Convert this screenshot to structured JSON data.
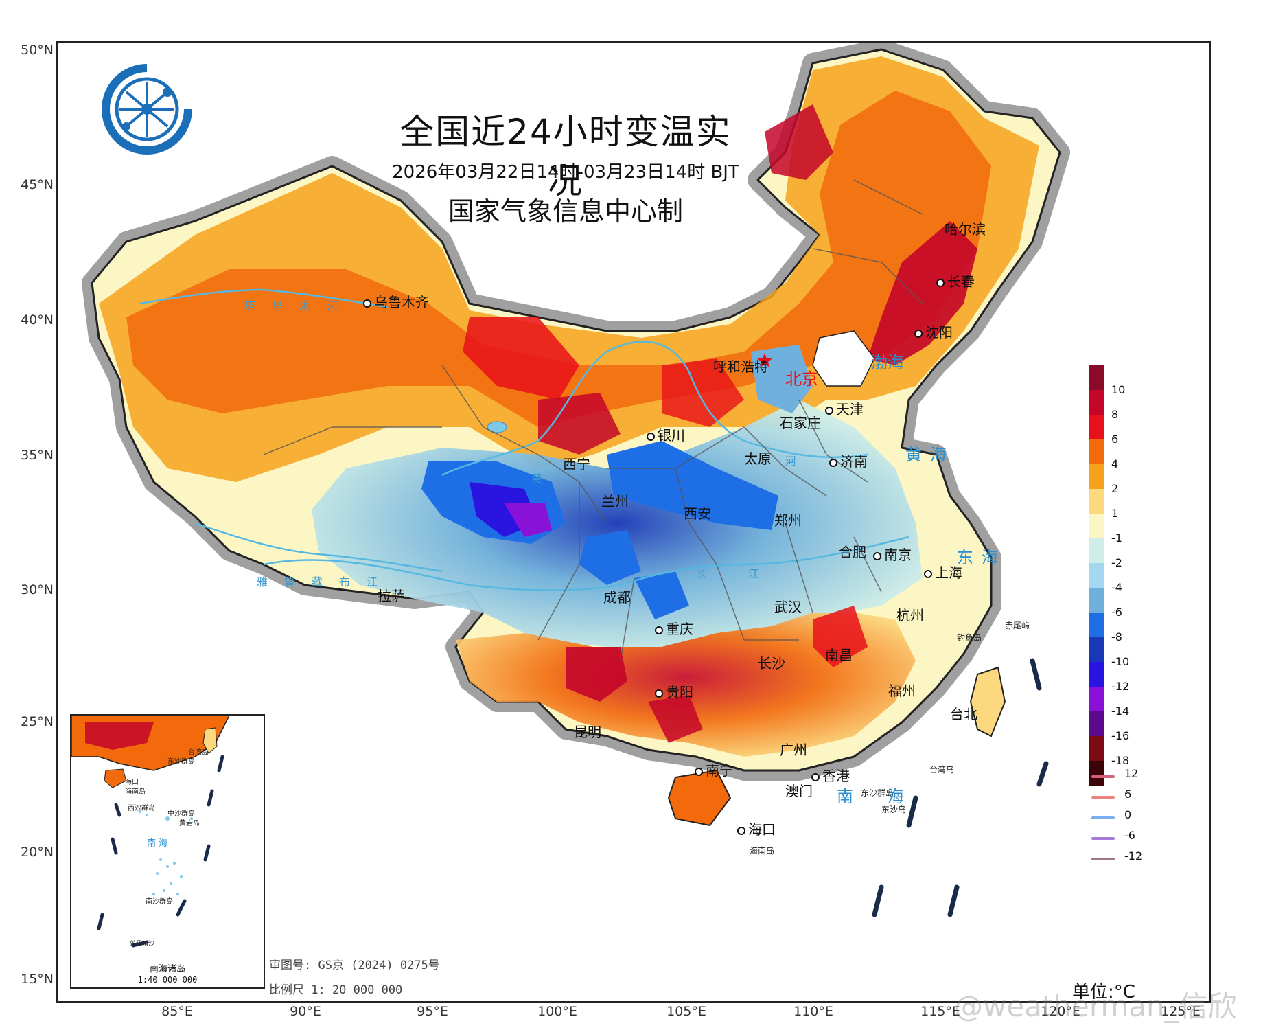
{
  "title": "全国近24小时变温实况",
  "subtitle": "2026年03月22日14时-03月23日14时 BJT",
  "maker": "国家气象信息中心制",
  "latitude_labels": [
    "50°N",
    "45°N",
    "40°N",
    "35°N",
    "30°N",
    "25°N",
    "20°N",
    "15°N"
  ],
  "longitude_labels": [
    "85°E",
    "90°E",
    "95°E",
    "100°E",
    "105°E",
    "110°E",
    "115°E",
    "120°E",
    "125°E"
  ],
  "cities": {
    "urumqi": "乌鲁木齐",
    "harbin": "哈尔滨",
    "changchun": "长春",
    "shenyang": "沈阳",
    "hohhot": "呼和浩特",
    "beijing": "北京",
    "tianjin": "天津",
    "shijiazhuang": "石家庄",
    "yinchuan": "银川",
    "taiyuan": "太原",
    "jinan": "济南",
    "xining": "西宁",
    "lanzhou": "兰州",
    "xian": "西安",
    "zhengzhou": "郑州",
    "hefei": "合肥",
    "nanjing": "南京",
    "shanghai": "上海",
    "lhasa": "拉萨",
    "chengdu": "成都",
    "wuhan": "武汉",
    "hangzhou": "杭州",
    "chongqing": "重庆",
    "nanchang": "南昌",
    "changsha": "长沙",
    "fuzhou": "福州",
    "guiyang": "贵阳",
    "taipei": "台北",
    "kunming": "昆明",
    "guangzhou": "广州",
    "nanning": "南宁",
    "hongkong": "香港",
    "macau": "澳门",
    "haikou": "海口"
  },
  "places": {
    "diaoyudao": "钓鱼岛",
    "chiweiyu": "赤尾屿",
    "taiwan_island": "台湾岛",
    "dongsha": "东沙群岛",
    "dongshadao": "东沙岛",
    "hainan_island": "海南岛"
  },
  "seas": {
    "bohai": "渤海",
    "huanghai": "黄海",
    "donghai": "东海",
    "nanhai": "南海"
  },
  "rivers": {
    "tarim": "塔里木河",
    "yarlung": "雅鲁藏布江",
    "huanghe_1": "黄",
    "huanghe_2": "河",
    "changjiang": "长江"
  },
  "legend": {
    "values": [
      "10",
      "8",
      "6",
      "4",
      "2",
      "1",
      "-1",
      "-2",
      "-4",
      "-6",
      "-8",
      "-10",
      "-12",
      "-14",
      "-16",
      "-18"
    ],
    "colors": [
      "#8b0a2a",
      "#c4062a",
      "#e8101a",
      "#f26a0c",
      "#f7a21c",
      "#fcd97e",
      "#fbf6c4",
      "#cfeee8",
      "#a3d8f0",
      "#6fb0dc",
      "#1e6ee6",
      "#1838b8",
      "#2a14e0",
      "#8a12d8",
      "#5a0a8c",
      "#7a0a14",
      "#3a0408"
    ]
  },
  "line_legend": {
    "values": [
      "12",
      "6",
      "0",
      "-6",
      "-12"
    ],
    "colors": [
      "#d6607a",
      "#f08080",
      "#7aaef0",
      "#a87ad8",
      "#9a7a80"
    ]
  },
  "unit": "单位:°C",
  "review_no": "审图号: GS京 (2024) 0275号",
  "scale": "比例尺 1: 20 000 000",
  "inset": {
    "name": "南海诸岛",
    "scale": "1:40 000 000",
    "labels": {
      "taiwan_island": "台湾岛",
      "dongsha": "东沙群岛",
      "haikou": "海口",
      "hainan_island": "海南岛",
      "xisha": "西沙群岛",
      "zhongsha": "中沙群岛",
      "huangyan": "黄岩岛",
      "nanhai": "南 海",
      "nansha": "南沙群岛",
      "zengmu": "曾母暗沙"
    }
  },
  "watermark": "@weatherman_信欣"
}
